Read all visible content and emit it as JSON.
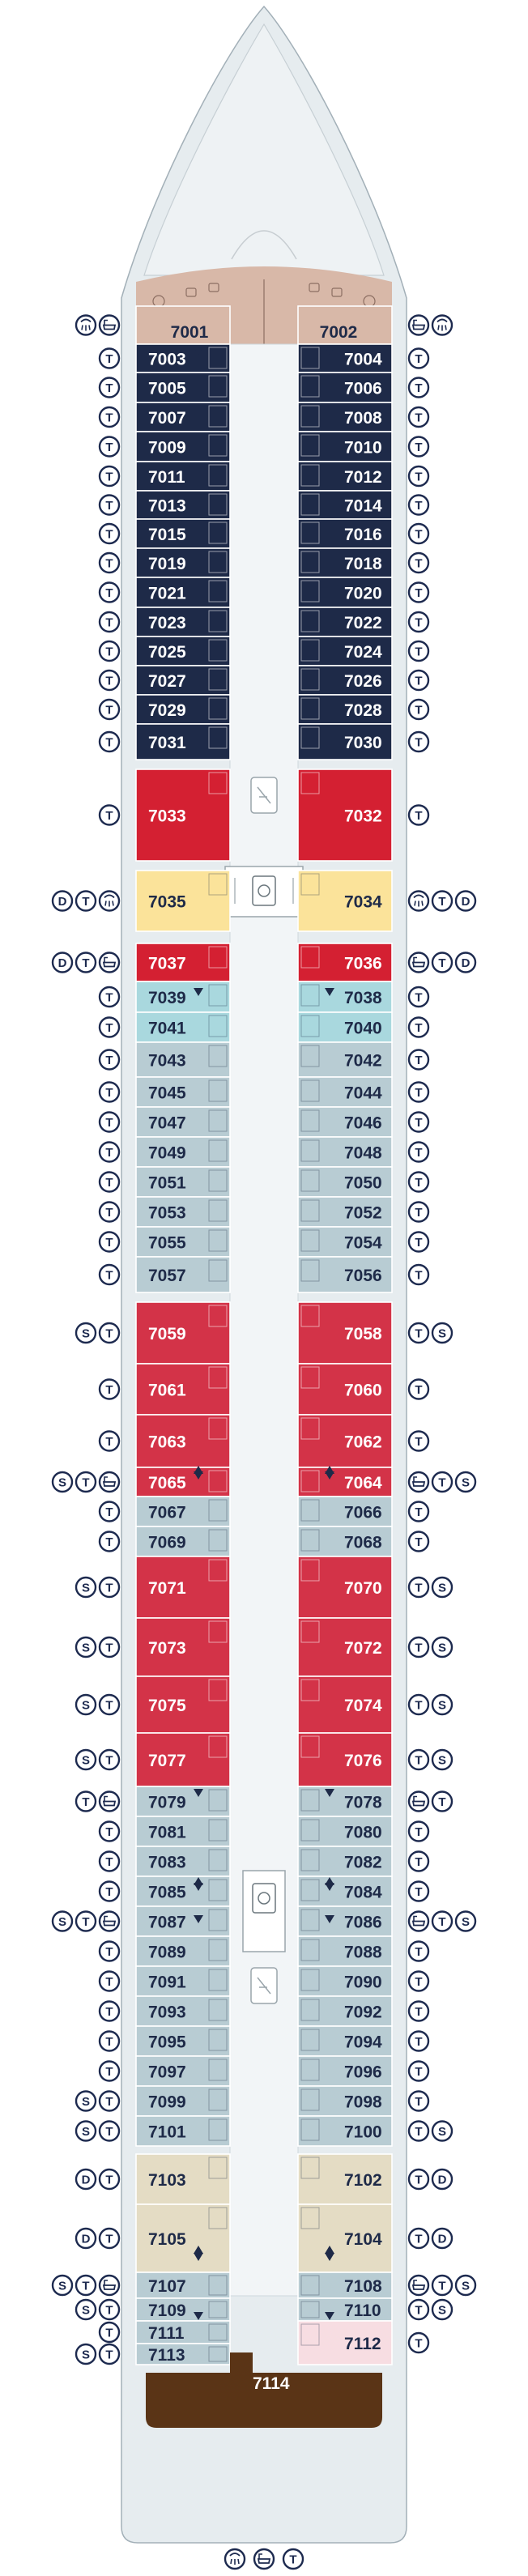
{
  "colors": {
    "navy": "#1e2a48",
    "pink": "#d8b8a8",
    "red": "#d42032",
    "crimson": "#d33348",
    "yellow": "#fbe39a",
    "light_blue": "#a9d8de",
    "grey_blue": "#b8ccd3",
    "beige": "#e4dcc4",
    "light_pink": "#f7dde2",
    "brown": "#5a3416",
    "hull": "#e6ecef",
    "icon": "#1d2a4f"
  },
  "symbol_letters": {
    "T": "T",
    "S": "S",
    "D": "D"
  },
  "icon_names": {
    "T": "twin-beds-icon",
    "S": "sofa-bed-icon",
    "D": "double-bed-icon",
    "shower": "shower-icon",
    "bath": "bathtub-icon"
  },
  "cabins": {
    "left": [
      "7001",
      "7003",
      "7005",
      "7007",
      "7009",
      "7011",
      "7013",
      "7015",
      "7019",
      "7021",
      "7023",
      "7025",
      "7027",
      "7029",
      "7031",
      "7033",
      "7035",
      "7037",
      "7039",
      "7041",
      "7043",
      "7045",
      "7047",
      "7049",
      "7051",
      "7053",
      "7055",
      "7057",
      "7059",
      "7061",
      "7063",
      "7065",
      "7067",
      "7069",
      "7071",
      "7073",
      "7075",
      "7077",
      "7079",
      "7081",
      "7083",
      "7085",
      "7087",
      "7089",
      "7091",
      "7093",
      "7095",
      "7097",
      "7099",
      "7101",
      "7103",
      "7105",
      "7107",
      "7109",
      "7111",
      "7113"
    ],
    "right": [
      "7002",
      "7004",
      "7006",
      "7008",
      "7010",
      "7012",
      "7014",
      "7016",
      "7018",
      "7020",
      "7022",
      "7024",
      "7026",
      "7028",
      "7030",
      "7032",
      "7034",
      "7036",
      "7038",
      "7040",
      "7042",
      "7044",
      "7046",
      "7048",
      "7050",
      "7052",
      "7054",
      "7056",
      "7058",
      "7060",
      "7062",
      "7064",
      "7066",
      "7068",
      "7070",
      "7072",
      "7074",
      "7076",
      "7078",
      "7080",
      "7082",
      "7084",
      "7086",
      "7088",
      "7090",
      "7092",
      "7094",
      "7096",
      "7098",
      "7100",
      "7102",
      "7104",
      "7108",
      "7110",
      "7112"
    ],
    "stern": "7114"
  },
  "badges": {
    "left": [
      [
        "shower",
        "bath"
      ],
      [
        "T"
      ],
      [
        "T"
      ],
      [
        "T"
      ],
      [
        "T"
      ],
      [
        "T"
      ],
      [
        "T"
      ],
      [
        "T"
      ],
      [
        "T"
      ],
      [
        "T"
      ],
      [
        "T"
      ],
      [
        "T"
      ],
      [
        "T"
      ],
      [
        "T"
      ],
      [
        "T"
      ],
      [
        "T"
      ],
      [
        "D",
        "T",
        "shower"
      ],
      [
        "D",
        "T",
        "bath"
      ],
      [
        "T"
      ],
      [
        "T"
      ],
      [
        "T"
      ],
      [
        "T"
      ],
      [
        "T"
      ],
      [
        "T"
      ],
      [
        "T"
      ],
      [
        "T"
      ],
      [
        "T"
      ],
      [
        "T"
      ],
      [
        "S",
        "T"
      ],
      [
        "T"
      ],
      [
        "T"
      ],
      [
        "S",
        "T",
        "bath"
      ],
      [
        "T"
      ],
      [
        "T"
      ],
      [
        "S",
        "T"
      ],
      [
        "S",
        "T"
      ],
      [
        "S",
        "T"
      ],
      [
        "S",
        "T"
      ],
      [
        "T",
        "bath"
      ],
      [
        "T"
      ],
      [
        "T"
      ],
      [
        "T"
      ],
      [
        "S",
        "T",
        "bath"
      ],
      [
        "T"
      ],
      [
        "T"
      ],
      [
        "T"
      ],
      [
        "T"
      ],
      [
        "T"
      ],
      [
        "S",
        "T"
      ],
      [
        "S",
        "T"
      ],
      [
        "D",
        "T"
      ],
      [
        "D",
        "T"
      ],
      [
        "S",
        "T",
        "bath"
      ],
      [
        "S",
        "T"
      ],
      [
        "T"
      ],
      [
        "S",
        "T"
      ]
    ],
    "right": [
      [
        "bath",
        "shower"
      ],
      [
        "T"
      ],
      [
        "T"
      ],
      [
        "T"
      ],
      [
        "T"
      ],
      [
        "T"
      ],
      [
        "T"
      ],
      [
        "T"
      ],
      [
        "T"
      ],
      [
        "T"
      ],
      [
        "T"
      ],
      [
        "T"
      ],
      [
        "T"
      ],
      [
        "T"
      ],
      [
        "T"
      ],
      [
        "T"
      ],
      [
        "shower",
        "T",
        "D"
      ],
      [
        "bath",
        "T",
        "D"
      ],
      [
        "T"
      ],
      [
        "T"
      ],
      [
        "T"
      ],
      [
        "T"
      ],
      [
        "T"
      ],
      [
        "T"
      ],
      [
        "T"
      ],
      [
        "T"
      ],
      [
        "T"
      ],
      [
        "T"
      ],
      [
        "T",
        "S"
      ],
      [
        "T"
      ],
      [
        "T"
      ],
      [
        "bath",
        "T",
        "S"
      ],
      [
        "T"
      ],
      [
        "T"
      ],
      [
        "T",
        "S"
      ],
      [
        "T",
        "S"
      ],
      [
        "T",
        "S"
      ],
      [
        "T",
        "S"
      ],
      [
        "bath",
        "T"
      ],
      [
        "T"
      ],
      [
        "T"
      ],
      [
        "T"
      ],
      [
        "bath",
        "T",
        "S"
      ],
      [
        "T"
      ],
      [
        "T"
      ],
      [
        "T"
      ],
      [
        "T"
      ],
      [
        "T"
      ],
      [
        "T"
      ],
      [
        "T",
        "S"
      ],
      [
        "T",
        "D"
      ],
      [
        "T",
        "D"
      ],
      [
        "bath",
        "T",
        "S"
      ],
      [
        "T",
        "S"
      ],
      [
        "T"
      ]
    ],
    "stern": [
      "shower",
      "bath",
      "T"
    ]
  }
}
